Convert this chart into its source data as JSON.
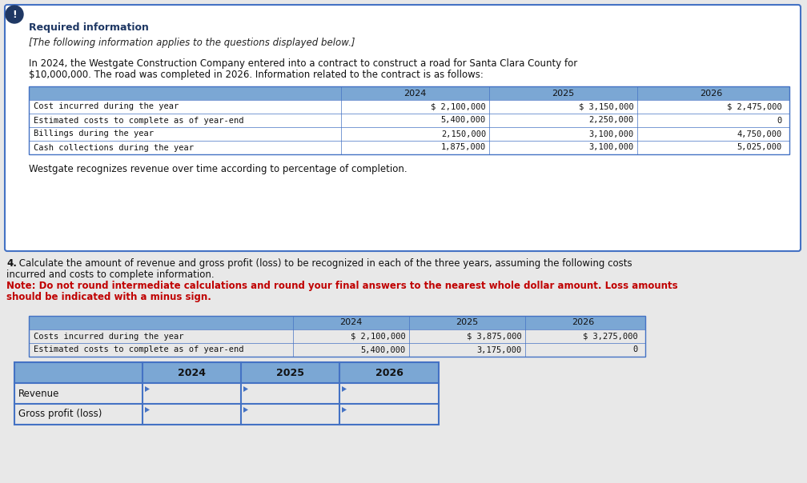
{
  "bg_color": "#e8e8e8",
  "box1_bg": "#ffffff",
  "box1_border": "#4472c4",
  "icon_bg": "#1f3864",
  "section1_title": "Required information",
  "section1_title_color": "#1f3864",
  "section1_italic": "[The following information applies to the questions displayed below.]",
  "section1_body1": "In 2024, the Westgate Construction Company entered into a contract to construct a road for Santa Clara County for",
  "section1_body2": "$10,000,000. The road was completed in 2026. Information related to the contract is as follows:",
  "table1_header": [
    "",
    "2024",
    "2025",
    "2026"
  ],
  "table1_rows": [
    [
      "Cost incurred during the year",
      "$ 2,100,000",
      "$ 3,150,000",
      "$ 2,475,000"
    ],
    [
      "Estimated costs to complete as of year-end",
      "5,400,000",
      "2,250,000",
      "0"
    ],
    [
      "Billings during the year",
      "2,150,000",
      "3,100,000",
      "4,750,000"
    ],
    [
      "Cash collections during the year",
      "1,875,000",
      "3,100,000",
      "5,025,000"
    ]
  ],
  "table1_note": "Westgate recognizes revenue over time according to percentage of completion.",
  "s4_bold": "4.",
  "s4_text1": " Calculate the amount of revenue and gross profit (loss) to be recognized in each of the three years, assuming the following costs",
  "s4_text2": "incurred and costs to complete information.",
  "s4_red1": "Note: Do not round intermediate calculations and round your final answers to the nearest whole dollar amount. Loss amounts",
  "s4_red2": "should be indicated with a minus sign.",
  "table2_header": [
    "",
    "2024",
    "2025",
    "2026"
  ],
  "table2_rows": [
    [
      "Costs incurred during the year",
      "$ 2,100,000",
      "$ 3,875,000",
      "$ 3,275,000"
    ],
    [
      "Estimated costs to complete as of year-end",
      "5,400,000",
      "3,175,000",
      "0"
    ]
  ],
  "table3_header": [
    "",
    "2024",
    "2025",
    "2026"
  ],
  "table3_rows": [
    [
      "Revenue",
      "",
      "",
      ""
    ],
    [
      "Gross profit (loss)",
      "",
      "",
      ""
    ]
  ],
  "header_bg": "#7ba7d4",
  "header_bg2": "#8fb4d9",
  "table_border": "#4472c4",
  "mono_font": "DejaVu Sans Mono",
  "body_font": "DejaVu Sans",
  "red_color": "#c00000"
}
